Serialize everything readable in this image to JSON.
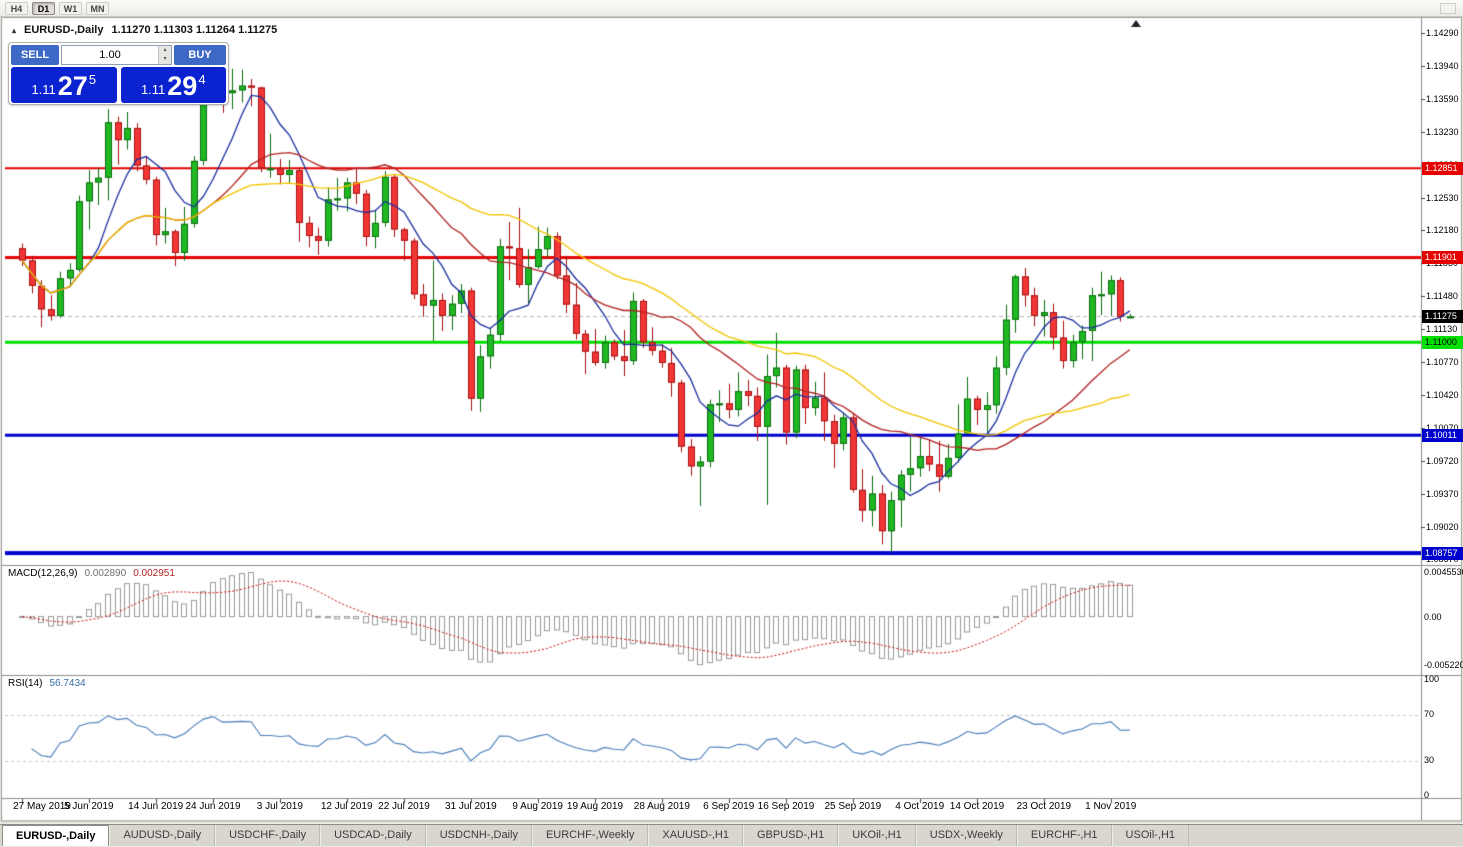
{
  "toolbar": {
    "periods": [
      {
        "label": "H4",
        "active": false
      },
      {
        "label": "D1",
        "active": true
      },
      {
        "label": "W1",
        "active": false
      },
      {
        "label": "MN",
        "active": false
      }
    ]
  },
  "chart_header": {
    "collapse_icon": "▴",
    "symbol": "EURUSD-,Daily",
    "ohlc": "1.11270 1.11303 1.11264 1.11275"
  },
  "trade_panel": {
    "sell_label": "SELL",
    "buy_label": "BUY",
    "volume": "1.00",
    "spinner_up": "▴",
    "spinner_down": "▾",
    "sell_price": {
      "base": "1.11",
      "big": "27",
      "sup": "5"
    },
    "buy_price": {
      "base": "1.11",
      "big": "29",
      "sup": "4"
    }
  },
  "macd_panel": {
    "title": "MACD(12,26,9)",
    "main_value": "0.002890",
    "signal_value": "0.002951",
    "axis_top": "0.0045536",
    "axis_zero": "0.00",
    "axis_bottom": "-0.0052205"
  },
  "rsi_panel": {
    "title": "RSI(14)",
    "value": "56.7434",
    "axis": [
      "100",
      "70",
      "30",
      "0"
    ]
  },
  "tabs": [
    {
      "label": "EURUSD-,Daily",
      "active": true
    },
    {
      "label": "AUDUSD-,Daily",
      "active": false
    },
    {
      "label": "USDCHF-,Daily",
      "active": false
    },
    {
      "label": "USDCAD-,Daily",
      "active": false
    },
    {
      "label": "USDCNH-,Daily",
      "active": false
    },
    {
      "label": "EURCHF-,Weekly",
      "active": false
    },
    {
      "label": "XAUUSD-,H1",
      "active": false
    },
    {
      "label": "GBPUSD-,H1",
      "active": false
    },
    {
      "label": "UKOil-,H1",
      "active": false
    },
    {
      "label": "USDX-,Weekly",
      "active": false
    },
    {
      "label": "EURCHF-,H1",
      "active": false
    },
    {
      "label": "USOil-,H1",
      "active": false
    }
  ],
  "chart_data": {
    "type": "candlestick",
    "symbol": "EURUSD-",
    "timeframe": "Daily",
    "bull_color": "#1fb822",
    "bear_color": "#f23636",
    "bull_border": "#0d6e11",
    "bear_border": "#a81212",
    "price_axis_ticks": [
      "1.14290",
      "1.13940",
      "1.13590",
      "1.13230",
      "1.12880",
      "1.12530",
      "1.12180",
      "1.11830",
      "1.11480",
      "1.11130",
      "1.10770",
      "1.10420",
      "1.10070",
      "1.09720",
      "1.09370",
      "1.09020",
      "1.08670"
    ],
    "x_axis_labels": [
      {
        "text": "27 May 2019",
        "day": 0
      },
      {
        "text": "5 Jun 2019",
        "day": 7
      },
      {
        "text": "14 Jun 2019",
        "day": 14
      },
      {
        "text": "24 Jun 2019",
        "day": 20
      },
      {
        "text": "3 Jul 2019",
        "day": 27
      },
      {
        "text": "12 Jul 2019",
        "day": 34
      },
      {
        "text": "22 Jul 2019",
        "day": 40
      },
      {
        "text": "31 Jul 2019",
        "day": 47
      },
      {
        "text": "9 Aug 2019",
        "day": 54
      },
      {
        "text": "19 Aug 2019",
        "day": 60
      },
      {
        "text": "28 Aug 2019",
        "day": 67
      },
      {
        "text": "6 Sep 2019",
        "day": 74
      },
      {
        "text": "16 Sep 2019",
        "day": 80
      },
      {
        "text": "25 Sep 2019",
        "day": 87
      },
      {
        "text": "4 Oct 2019",
        "day": 94
      },
      {
        "text": "14 Oct 2019",
        "day": 100
      },
      {
        "text": "23 Oct 2019",
        "day": 107
      },
      {
        "text": "1 Nov 2019",
        "day": 114
      }
    ],
    "levels": [
      {
        "price": 1.12851,
        "label": "1.12851",
        "color": "#e60000",
        "line_width": 2,
        "text_color": "#ffffff"
      },
      {
        "price": 1.11901,
        "label": "1.11901",
        "color": "#e60000",
        "line_width": 3,
        "text_color": "#ffffff"
      },
      {
        "price": 1.11,
        "label": "1.11000",
        "color": "#00e000",
        "line_width": 3,
        "text_color": "#000000"
      },
      {
        "price": 1.10011,
        "label": "1.10011",
        "color": "#0000cc",
        "line_width": 3,
        "text_color": "#ffffff"
      },
      {
        "price": 1.08757,
        "label": "1.08757",
        "color": "#0000cc",
        "line_width": 4,
        "text_color": "#ffffff"
      }
    ],
    "current_price": {
      "value": 1.11275,
      "label": "1.11275",
      "badge_color": "#000000",
      "text_color": "#ffffff"
    },
    "moving_averages": [
      {
        "period": 7,
        "color": "#1c2f9e"
      },
      {
        "period": 21,
        "color": "#b22222"
      },
      {
        "period": 34,
        "color": "#f2c500"
      }
    ],
    "macd": {
      "fast": 12,
      "slow": 26,
      "signal": 9,
      "histogram_color": "#9a9a9a",
      "signal_color": "#cc1111"
    },
    "rsi": {
      "period": 14,
      "color": "#4a7ebb",
      "levels": [
        70,
        30
      ]
    },
    "candles": [
      [
        1.12,
        1.1205,
        1.1181,
        1.1187
      ],
      [
        1.1187,
        1.1192,
        1.1152,
        1.116
      ],
      [
        1.116,
        1.1166,
        1.1116,
        1.1135
      ],
      [
        1.1135,
        1.115,
        1.1123,
        1.1128
      ],
      [
        1.1128,
        1.1175,
        1.1126,
        1.1168
      ],
      [
        1.1168,
        1.1184,
        1.116,
        1.1177
      ],
      [
        1.1177,
        1.1256,
        1.1175,
        1.125
      ],
      [
        1.125,
        1.1283,
        1.122,
        1.127
      ],
      [
        1.127,
        1.1286,
        1.1246,
        1.1275
      ],
      [
        1.1275,
        1.1348,
        1.1251,
        1.1334
      ],
      [
        1.1334,
        1.134,
        1.1289,
        1.1315
      ],
      [
        1.1315,
        1.1345,
        1.1305,
        1.1328
      ],
      [
        1.1328,
        1.1333,
        1.1282,
        1.1288
      ],
      [
        1.1288,
        1.1298,
        1.1268,
        1.1273
      ],
      [
        1.1273,
        1.1276,
        1.1203,
        1.1214
      ],
      [
        1.1214,
        1.1243,
        1.1205,
        1.1218
      ],
      [
        1.1218,
        1.122,
        1.1181,
        1.1195
      ],
      [
        1.1195,
        1.1244,
        1.1187,
        1.1226
      ],
      [
        1.1226,
        1.1298,
        1.1222,
        1.1293
      ],
      [
        1.1293,
        1.1378,
        1.1288,
        1.1368
      ],
      [
        1.1368,
        1.1412,
        1.1362,
        1.14
      ],
      [
        1.14,
        1.1403,
        1.1344,
        1.1365
      ],
      [
        1.1365,
        1.1391,
        1.1348,
        1.1368
      ],
      [
        1.1368,
        1.139,
        1.1355,
        1.1373
      ],
      [
        1.1373,
        1.138,
        1.1351,
        1.1371
      ],
      [
        1.1371,
        1.1372,
        1.1281,
        1.1285
      ],
      [
        1.1285,
        1.1322,
        1.1275,
        1.1285
      ],
      [
        1.1285,
        1.1295,
        1.1268,
        1.1278
      ],
      [
        1.1278,
        1.1294,
        1.1269,
        1.1283
      ],
      [
        1.1283,
        1.1286,
        1.1207,
        1.1227
      ],
      [
        1.1227,
        1.1234,
        1.1201,
        1.1213
      ],
      [
        1.1213,
        1.1222,
        1.1193,
        1.1208
      ],
      [
        1.1208,
        1.1265,
        1.1202,
        1.1252
      ],
      [
        1.1252,
        1.1275,
        1.124,
        1.1253
      ],
      [
        1.1253,
        1.1275,
        1.1239,
        1.127
      ],
      [
        1.127,
        1.1285,
        1.1247,
        1.1258
      ],
      [
        1.1258,
        1.1262,
        1.1202,
        1.1212
      ],
      [
        1.1212,
        1.1241,
        1.12,
        1.1227
      ],
      [
        1.1227,
        1.1282,
        1.1223,
        1.1276
      ],
      [
        1.1276,
        1.1279,
        1.1212,
        1.122
      ],
      [
        1.122,
        1.1222,
        1.1187,
        1.1208
      ],
      [
        1.1208,
        1.1211,
        1.1146,
        1.1151
      ],
      [
        1.1151,
        1.1162,
        1.1127,
        1.1139
      ],
      [
        1.1139,
        1.1187,
        1.1101,
        1.1145
      ],
      [
        1.1145,
        1.1152,
        1.1112,
        1.1128
      ],
      [
        1.1128,
        1.115,
        1.1113,
        1.1141
      ],
      [
        1.1141,
        1.1162,
        1.1131,
        1.1155
      ],
      [
        1.1155,
        1.1158,
        1.1027,
        1.104
      ],
      [
        1.104,
        1.1097,
        1.1026,
        1.1085
      ],
      [
        1.1085,
        1.1116,
        1.1072,
        1.1108
      ],
      [
        1.1108,
        1.121,
        1.1101,
        1.1202
      ],
      [
        1.1202,
        1.1228,
        1.1166,
        1.12
      ],
      [
        1.12,
        1.1243,
        1.1158,
        1.1161
      ],
      [
        1.1161,
        1.1199,
        1.1141,
        1.118
      ],
      [
        1.118,
        1.1223,
        1.1178,
        1.1199
      ],
      [
        1.1199,
        1.1222,
        1.119,
        1.1213
      ],
      [
        1.1213,
        1.1217,
        1.1167,
        1.1171
      ],
      [
        1.1171,
        1.1192,
        1.1131,
        1.114
      ],
      [
        1.114,
        1.1163,
        1.1103,
        1.1109
      ],
      [
        1.1109,
        1.1113,
        1.1066,
        1.109
      ],
      [
        1.109,
        1.1114,
        1.1075,
        1.1078
      ],
      [
        1.1078,
        1.1107,
        1.1072,
        1.11
      ],
      [
        1.11,
        1.1103,
        1.1081,
        1.1085
      ],
      [
        1.1085,
        1.1113,
        1.1064,
        1.108
      ],
      [
        1.108,
        1.1153,
        1.1076,
        1.1144
      ],
      [
        1.1144,
        1.1146,
        1.1094,
        1.11
      ],
      [
        1.11,
        1.1116,
        1.1086,
        1.1091
      ],
      [
        1.1091,
        1.1098,
        1.1073,
        1.1078
      ],
      [
        1.1078,
        1.1094,
        1.1042,
        1.1057
      ],
      [
        1.1057,
        1.106,
        1.0983,
        1.0989
      ],
      [
        1.0989,
        1.0997,
        1.0958,
        1.0968
      ],
      [
        1.0968,
        1.0979,
        1.0926,
        1.0973
      ],
      [
        1.0973,
        1.1039,
        1.0967,
        1.1034
      ],
      [
        1.1034,
        1.1049,
        1.1015,
        1.1035
      ],
      [
        1.1035,
        1.1056,
        1.1019,
        1.1028
      ],
      [
        1.1028,
        1.1068,
        1.1021,
        1.1048
      ],
      [
        1.1048,
        1.106,
        1.1032,
        1.1043
      ],
      [
        1.1043,
        1.1052,
        1.0995,
        1.101
      ],
      [
        1.101,
        1.1087,
        1.0927,
        1.1064
      ],
      [
        1.1064,
        1.111,
        1.1052,
        1.1073
      ],
      [
        1.1073,
        1.1076,
        1.0991,
        1.1004
      ],
      [
        1.1004,
        1.1075,
        1.0998,
        1.1071
      ],
      [
        1.1071,
        1.1076,
        1.1013,
        1.103
      ],
      [
        1.103,
        1.1058,
        1.1022,
        1.1041
      ],
      [
        1.1041,
        1.1068,
        1.0995,
        1.1016
      ],
      [
        1.1016,
        1.1023,
        1.0966,
        1.0992
      ],
      [
        1.0992,
        1.1025,
        1.0985,
        1.102
      ],
      [
        1.102,
        1.1024,
        1.094,
        1.0943
      ],
      [
        1.0943,
        1.0965,
        1.0909,
        1.0921
      ],
      [
        1.0921,
        1.0958,
        1.0904,
        1.0939
      ],
      [
        1.0939,
        1.0948,
        1.0885,
        1.0899
      ],
      [
        1.0899,
        1.0941,
        1.0876,
        1.0932
      ],
      [
        1.0932,
        1.0964,
        1.0903,
        1.0959
      ],
      [
        1.0959,
        1.0999,
        1.0941,
        1.0966
      ],
      [
        1.0966,
        1.0999,
        1.0957,
        1.0979
      ],
      [
        1.0979,
        1.0996,
        1.0963,
        1.097
      ],
      [
        1.097,
        1.0995,
        1.0941,
        1.0957
      ],
      [
        1.0957,
        1.0992,
        1.0955,
        1.0977
      ],
      [
        1.0977,
        1.1034,
        1.0972,
        1.1003
      ],
      [
        1.1003,
        1.1063,
        1.1002,
        1.104
      ],
      [
        1.104,
        1.1043,
        1.1012,
        1.1028
      ],
      [
        1.1028,
        1.1047,
        1.1001,
        1.1033
      ],
      [
        1.1033,
        1.1085,
        1.1024,
        1.1073
      ],
      [
        1.1073,
        1.114,
        1.1065,
        1.1124
      ],
      [
        1.1124,
        1.1172,
        1.111,
        1.117
      ],
      [
        1.117,
        1.1179,
        1.1138,
        1.115
      ],
      [
        1.115,
        1.1158,
        1.1117,
        1.1128
      ],
      [
        1.1128,
        1.1145,
        1.1106,
        1.1132
      ],
      [
        1.1132,
        1.1141,
        1.1092,
        1.1105
      ],
      [
        1.1105,
        1.1123,
        1.1072,
        1.108
      ],
      [
        1.108,
        1.1108,
        1.1073,
        1.11
      ],
      [
        1.11,
        1.1118,
        1.1082,
        1.1112
      ],
      [
        1.1112,
        1.1158,
        1.108,
        1.115
      ],
      [
        1.115,
        1.1175,
        1.1129,
        1.1151
      ],
      [
        1.1151,
        1.1171,
        1.1128,
        1.1166
      ],
      [
        1.1166,
        1.1169,
        1.1122,
        1.1127
      ],
      [
        1.1127,
        1.11303,
        1.11264,
        1.11275
      ]
    ]
  }
}
